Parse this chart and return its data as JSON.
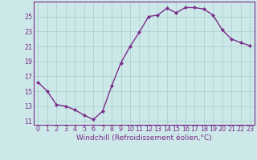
{
  "x": [
    0,
    1,
    2,
    3,
    4,
    5,
    6,
    7,
    8,
    9,
    10,
    11,
    12,
    13,
    14,
    15,
    16,
    17,
    18,
    19,
    20,
    21,
    22,
    23
  ],
  "y": [
    16.2,
    15.0,
    13.2,
    13.0,
    12.5,
    11.8,
    11.2,
    12.3,
    15.7,
    18.8,
    21.0,
    22.9,
    25.0,
    25.2,
    26.1,
    25.5,
    26.2,
    26.2,
    26.0,
    25.2,
    23.2,
    22.0,
    21.5,
    21.1
  ],
  "line_color": "#7b2d8b",
  "marker": "D",
  "marker_size": 2.0,
  "bg_color": "#cce8e8",
  "grid_color": "#aacccc",
  "xlabel": "Windchill (Refroidissement éolien,°C)",
  "xlim": [
    -0.5,
    23.5
  ],
  "ylim": [
    10.5,
    27.0
  ],
  "yticks": [
    11,
    13,
    15,
    17,
    19,
    21,
    23,
    25
  ],
  "xticks": [
    0,
    1,
    2,
    3,
    4,
    5,
    6,
    7,
    8,
    9,
    10,
    11,
    12,
    13,
    14,
    15,
    16,
    17,
    18,
    19,
    20,
    21,
    22,
    23
  ],
  "tick_label_color": "#7b2d8b",
  "axis_color": "#7b2d8b",
  "label_fontsize": 6.5,
  "tick_fontsize": 5.8,
  "linewidth": 1.0
}
